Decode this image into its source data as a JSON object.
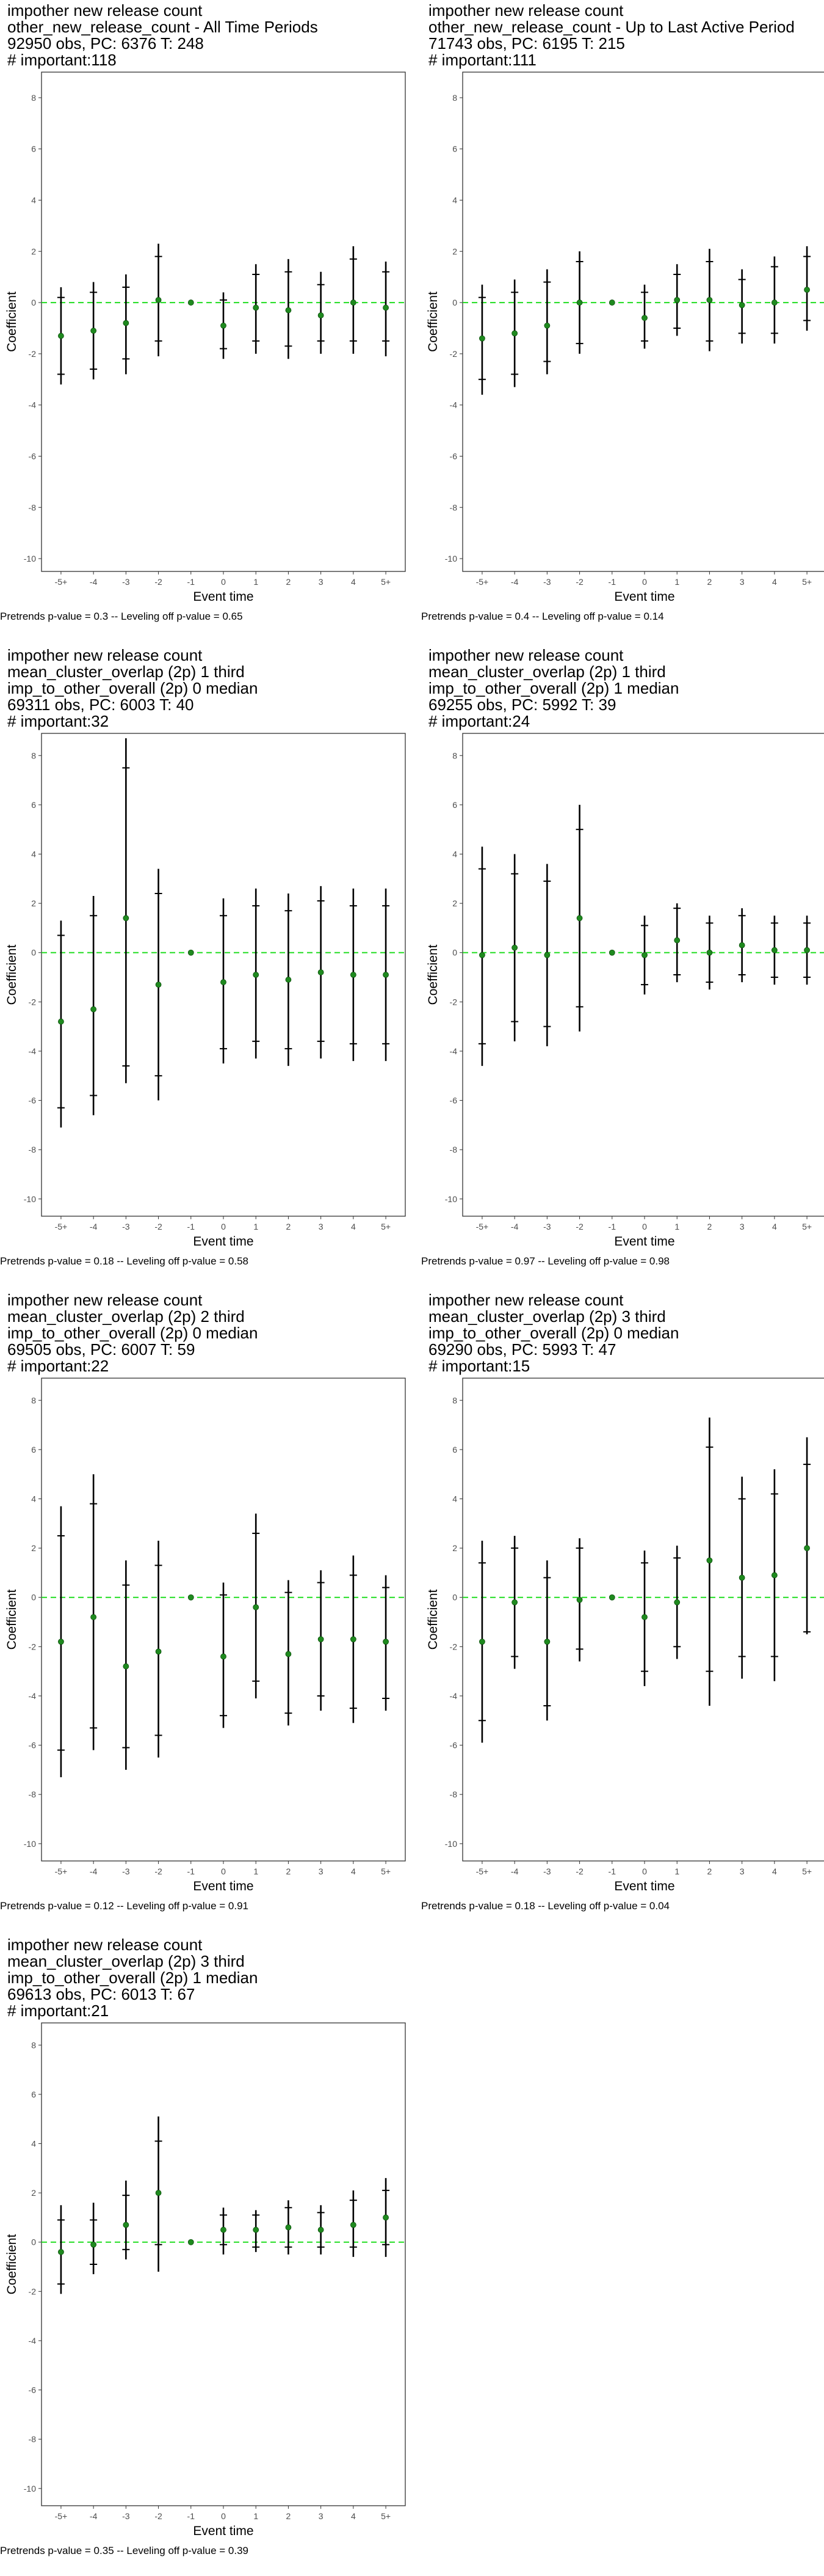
{
  "chart_data": [
    {
      "type": "scatter",
      "title_lines": [
        "impother new release count",
        "other_new_release_count - All Time Periods",
        "92950 obs, PC: 6376 T: 248",
        "# important:118"
      ],
      "xlabel": "Event time",
      "ylabel": "Coefficient",
      "categories": [
        "-5+",
        "-4",
        "-3",
        "-2",
        "-1",
        "0",
        "1",
        "2",
        "3",
        "4",
        "5+"
      ],
      "ylim": [
        -10.5,
        9.0
      ],
      "yticks": [
        "-10",
        "-8",
        "-6",
        "-4",
        "-2",
        "0",
        "2",
        "4",
        "6",
        "8"
      ],
      "series": [
        {
          "values": [
            -1.3,
            -1.1,
            -0.8,
            0.1,
            0.0,
            -0.9,
            -0.2,
            -0.3,
            -0.5,
            0.0,
            -0.2
          ],
          "ci_outer_low": [
            -3.2,
            -3.0,
            -2.8,
            -2.1,
            0.0,
            -2.2,
            -2.0,
            -2.2,
            -2.0,
            -2.0,
            -2.1
          ],
          "ci_outer_high": [
            0.6,
            0.8,
            1.1,
            2.3,
            0.0,
            0.4,
            1.5,
            1.7,
            1.2,
            2.2,
            1.6
          ],
          "ci_inner_low": [
            -2.8,
            -2.6,
            -2.2,
            -1.5,
            0.0,
            -1.8,
            -1.5,
            -1.7,
            -1.5,
            -1.5,
            -1.5
          ],
          "ci_inner_high": [
            0.2,
            0.4,
            0.6,
            1.8,
            0.0,
            0.1,
            1.1,
            1.2,
            0.7,
            1.7,
            1.2
          ]
        }
      ],
      "reference_line": 0,
      "footnote": "Pretrends p-value = 0.3 -- Leveling off p-value = 0.65"
    },
    {
      "type": "scatter",
      "title_lines": [
        "impother new release count",
        "other_new_release_count - Up to Last Active Period",
        "71743 obs, PC: 6195 T: 215",
        "# important:111"
      ],
      "xlabel": "Event time",
      "ylabel": "Coefficient",
      "categories": [
        "-5+",
        "-4",
        "-3",
        "-2",
        "-1",
        "0",
        "1",
        "2",
        "3",
        "4",
        "5+"
      ],
      "ylim": [
        -10.5,
        9.0
      ],
      "yticks": [
        "-10",
        "-8",
        "-6",
        "-4",
        "-2",
        "0",
        "2",
        "4",
        "6",
        "8"
      ],
      "series": [
        {
          "values": [
            -1.4,
            -1.2,
            -0.9,
            0.0,
            0.0,
            -0.6,
            0.1,
            0.1,
            -0.1,
            0.0,
            0.5
          ],
          "ci_outer_low": [
            -3.6,
            -3.3,
            -2.8,
            -2.0,
            0.0,
            -1.8,
            -1.3,
            -1.9,
            -1.6,
            -1.6,
            -1.1
          ],
          "ci_outer_high": [
            0.7,
            0.9,
            1.3,
            2.0,
            0.0,
            0.7,
            1.5,
            2.1,
            1.3,
            1.8,
            2.2
          ],
          "ci_inner_low": [
            -3.0,
            -2.8,
            -2.3,
            -1.6,
            0.0,
            -1.5,
            -1.0,
            -1.5,
            -1.2,
            -1.2,
            -0.7
          ],
          "ci_inner_high": [
            0.2,
            0.4,
            0.8,
            1.6,
            0.0,
            0.4,
            1.1,
            1.6,
            0.9,
            1.4,
            1.8
          ]
        }
      ],
      "reference_line": 0,
      "footnote": "Pretrends p-value = 0.4 -- Leveling off p-value = 0.14"
    },
    {
      "type": "scatter",
      "title_lines": [
        "impother new release count",
        "mean_cluster_overlap (2p) 1 third",
        "imp_to_other_overall (2p) 0 median",
        "69311 obs, PC: 6003 T: 40",
        "# important:32"
      ],
      "xlabel": "Event time",
      "ylabel": "Coefficient",
      "categories": [
        "-5+",
        "-4",
        "-3",
        "-2",
        "-1",
        "0",
        "1",
        "2",
        "3",
        "4",
        "5+"
      ],
      "ylim": [
        -10.7,
        8.9
      ],
      "yticks": [
        "-10",
        "-8",
        "-6",
        "-4",
        "-2",
        "0",
        "2",
        "4",
        "6",
        "8"
      ],
      "series": [
        {
          "values": [
            -2.8,
            -2.3,
            1.4,
            -1.3,
            0.0,
            -1.2,
            -0.9,
            -1.1,
            -0.8,
            -0.9,
            -0.9
          ],
          "ci_outer_low": [
            -7.1,
            -6.6,
            -5.3,
            -6.0,
            0.0,
            -4.5,
            -4.3,
            -4.6,
            -4.3,
            -4.4,
            -4.4
          ],
          "ci_outer_high": [
            1.3,
            2.3,
            8.7,
            3.4,
            0.0,
            2.2,
            2.6,
            2.4,
            2.7,
            2.6,
            2.6
          ],
          "ci_inner_low": [
            -6.3,
            -5.8,
            -4.6,
            -5.0,
            0.0,
            -3.9,
            -3.6,
            -3.9,
            -3.6,
            -3.7,
            -3.7
          ],
          "ci_inner_high": [
            0.7,
            1.5,
            7.5,
            2.4,
            0.0,
            1.5,
            1.9,
            1.7,
            2.1,
            1.9,
            1.9
          ]
        }
      ],
      "reference_line": 0,
      "footnote": "Pretrends p-value = 0.18 -- Leveling off p-value = 0.58"
    },
    {
      "type": "scatter",
      "title_lines": [
        "impother new release count",
        "mean_cluster_overlap (2p) 1 third",
        "imp_to_other_overall (2p) 1 median",
        "69255 obs, PC: 5992 T: 39",
        "# important:24"
      ],
      "xlabel": "Event time",
      "ylabel": "Coefficient",
      "categories": [
        "-5+",
        "-4",
        "-3",
        "-2",
        "-1",
        "0",
        "1",
        "2",
        "3",
        "4",
        "5+"
      ],
      "ylim": [
        -10.7,
        8.9
      ],
      "yticks": [
        "-10",
        "-8",
        "-6",
        "-4",
        "-2",
        "0",
        "2",
        "4",
        "6",
        "8"
      ],
      "series": [
        {
          "values": [
            -0.1,
            0.2,
            -0.1,
            1.4,
            0.0,
            -0.1,
            0.5,
            0.0,
            0.3,
            0.1,
            0.1
          ],
          "ci_outer_low": [
            -4.6,
            -3.6,
            -3.8,
            -3.2,
            0.0,
            -1.7,
            -1.2,
            -1.5,
            -1.2,
            -1.3,
            -1.3
          ],
          "ci_outer_high": [
            4.3,
            4.0,
            3.6,
            6.0,
            0.0,
            1.5,
            2.0,
            1.5,
            1.8,
            1.5,
            1.5
          ],
          "ci_inner_low": [
            -3.7,
            -2.8,
            -3.0,
            -2.2,
            0.0,
            -1.3,
            -0.9,
            -1.2,
            -0.9,
            -1.0,
            -1.0
          ],
          "ci_inner_high": [
            3.4,
            3.2,
            2.9,
            5.0,
            0.0,
            1.1,
            1.8,
            1.2,
            1.5,
            1.2,
            1.2
          ]
        }
      ],
      "reference_line": 0,
      "footnote": "Pretrends p-value = 0.97 -- Leveling off p-value = 0.98"
    },
    {
      "type": "scatter",
      "title_lines": [
        "impother new release count",
        "mean_cluster_overlap (2p) 2 third",
        "imp_to_other_overall (2p) 0 median",
        "69505 obs, PC: 6007 T: 59",
        "# important:22"
      ],
      "xlabel": "Event time",
      "ylabel": "Coefficient",
      "categories": [
        "-5+",
        "-4",
        "-3",
        "-2",
        "-1",
        "0",
        "1",
        "2",
        "3",
        "4",
        "5+"
      ],
      "ylim": [
        -10.7,
        8.9
      ],
      "yticks": [
        "-10",
        "-8",
        "-6",
        "-4",
        "-2",
        "0",
        "2",
        "4",
        "6",
        "8"
      ],
      "series": [
        {
          "values": [
            -1.8,
            -0.8,
            -2.8,
            -2.2,
            0.0,
            -2.4,
            -0.4,
            -2.3,
            -1.7,
            -1.7,
            -1.8
          ],
          "ci_outer_low": [
            -7.3,
            -6.2,
            -7.0,
            -6.5,
            0.0,
            -5.3,
            -4.1,
            -5.2,
            -4.6,
            -5.1,
            -4.6
          ],
          "ci_outer_high": [
            3.7,
            5.0,
            1.5,
            2.3,
            0.0,
            0.6,
            3.4,
            0.7,
            1.1,
            1.7,
            0.9
          ],
          "ci_inner_low": [
            -6.2,
            -5.3,
            -6.1,
            -5.6,
            0.0,
            -4.8,
            -3.4,
            -4.7,
            -4.0,
            -4.5,
            -4.1
          ],
          "ci_inner_high": [
            2.5,
            3.8,
            0.5,
            1.3,
            0.0,
            0.1,
            2.6,
            0.2,
            0.6,
            0.9,
            0.4
          ]
        }
      ],
      "reference_line": 0,
      "footnote": "Pretrends p-value = 0.12 -- Leveling off p-value = 0.91"
    },
    {
      "type": "scatter",
      "title_lines": [
        "impother new release count",
        "mean_cluster_overlap (2p) 3 third",
        "imp_to_other_overall (2p) 0 median",
        "69290 obs, PC: 5993 T: 47",
        "# important:15"
      ],
      "xlabel": "Event time",
      "ylabel": "Coefficient",
      "categories": [
        "-5+",
        "-4",
        "-3",
        "-2",
        "-1",
        "0",
        "1",
        "2",
        "3",
        "4",
        "5+"
      ],
      "ylim": [
        -10.7,
        8.9
      ],
      "yticks": [
        "-10",
        "-8",
        "-6",
        "-4",
        "-2",
        "0",
        "2",
        "4",
        "6",
        "8"
      ],
      "series": [
        {
          "values": [
            -1.8,
            -0.2,
            -1.8,
            -0.1,
            0.0,
            -0.8,
            -0.2,
            1.5,
            0.8,
            0.9,
            2.0
          ],
          "ci_outer_low": [
            -5.9,
            -2.9,
            -5.0,
            -2.6,
            0.0,
            -3.6,
            -2.5,
            -4.4,
            -3.3,
            -3.4,
            -1.5
          ],
          "ci_outer_high": [
            2.3,
            2.5,
            1.5,
            2.4,
            0.0,
            1.9,
            2.1,
            7.3,
            4.9,
            5.2,
            6.5
          ],
          "ci_inner_low": [
            -5.0,
            -2.4,
            -4.4,
            -2.1,
            0.0,
            -3.0,
            -2.0,
            -3.0,
            -2.4,
            -2.4,
            -1.4
          ],
          "ci_inner_high": [
            1.4,
            2.0,
            0.8,
            2.0,
            0.0,
            1.4,
            1.6,
            6.1,
            4.0,
            4.2,
            5.4
          ]
        }
      ],
      "reference_line": 0,
      "footnote": "Pretrends p-value = 0.18 -- Leveling off p-value = 0.04"
    },
    {
      "type": "scatter",
      "title_lines": [
        "impother new release count",
        "mean_cluster_overlap (2p) 3 third",
        "imp_to_other_overall (2p) 1 median",
        "69613 obs, PC: 6013 T: 67",
        "# important:21"
      ],
      "xlabel": "Event time",
      "ylabel": "Coefficient",
      "categories": [
        "-5+",
        "-4",
        "-3",
        "-2",
        "-1",
        "0",
        "1",
        "2",
        "3",
        "4",
        "5+"
      ],
      "ylim": [
        -10.7,
        8.9
      ],
      "yticks": [
        "-10",
        "-8",
        "-6",
        "-4",
        "-2",
        "0",
        "2",
        "4",
        "6",
        "8"
      ],
      "series": [
        {
          "values": [
            -0.4,
            -0.1,
            0.7,
            2.0,
            0.0,
            0.5,
            0.5,
            0.6,
            0.5,
            0.7,
            1.0
          ],
          "ci_outer_low": [
            -2.1,
            -1.3,
            -0.7,
            -1.2,
            0.0,
            -0.5,
            -0.4,
            -0.5,
            -0.5,
            -0.6,
            -0.6
          ],
          "ci_outer_high": [
            1.5,
            1.6,
            2.5,
            5.1,
            0.0,
            1.4,
            1.3,
            1.7,
            1.5,
            2.1,
            2.6
          ],
          "ci_inner_low": [
            -1.7,
            -0.9,
            -0.3,
            -0.1,
            0.0,
            -0.1,
            -0.2,
            -0.2,
            -0.2,
            -0.2,
            -0.1
          ],
          "ci_inner_high": [
            0.9,
            0.9,
            1.9,
            4.1,
            0.0,
            1.1,
            1.1,
            1.4,
            1.2,
            1.7,
            2.1
          ]
        }
      ],
      "reference_line": 0,
      "footnote": "Pretrends p-value = 0.35 -- Leveling off p-value = 0.39"
    }
  ],
  "colors": {
    "point": "#1f8a1f",
    "reference_line": "#22dd22",
    "error_bar": "#000000",
    "tick_text": "#4d4d4d",
    "frame": "#333333"
  }
}
